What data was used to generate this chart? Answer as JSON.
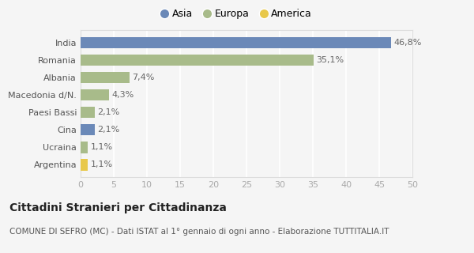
{
  "categories": [
    "Argentina",
    "Ucraina",
    "Cina",
    "Paesi Bassi",
    "Macedonia d/N.",
    "Albania",
    "Romania",
    "India"
  ],
  "values": [
    1.1,
    1.1,
    2.1,
    2.1,
    4.3,
    7.4,
    35.1,
    46.8
  ],
  "labels": [
    "1,1%",
    "1,1%",
    "2,1%",
    "2,1%",
    "4,3%",
    "7,4%",
    "35,1%",
    "46,8%"
  ],
  "colors": [
    "#e8c84a",
    "#a8bb8a",
    "#6b89b8",
    "#a8bb8a",
    "#a8bb8a",
    "#a8bb8a",
    "#a8bb8a",
    "#6b89b8"
  ],
  "legend_items": [
    {
      "label": "Asia",
      "color": "#6b89b8"
    },
    {
      "label": "Europa",
      "color": "#a8bb8a"
    },
    {
      "label": "America",
      "color": "#e8c84a"
    }
  ],
  "title": "Cittadini Stranieri per Cittadinanza",
  "subtitle": "COMUNE DI SEFRO (MC) - Dati ISTAT al 1° gennaio di ogni anno - Elaborazione TUTTITALIA.IT",
  "xlim": [
    0,
    50
  ],
  "xticks": [
    0,
    5,
    10,
    15,
    20,
    25,
    30,
    35,
    40,
    45,
    50
  ],
  "background_color": "#f5f5f5",
  "grid_color": "#ffffff",
  "bar_height": 0.65,
  "label_fontsize": 8,
  "title_fontsize": 10,
  "subtitle_fontsize": 7.5,
  "tick_fontsize": 8,
  "ytick_fontsize": 8
}
